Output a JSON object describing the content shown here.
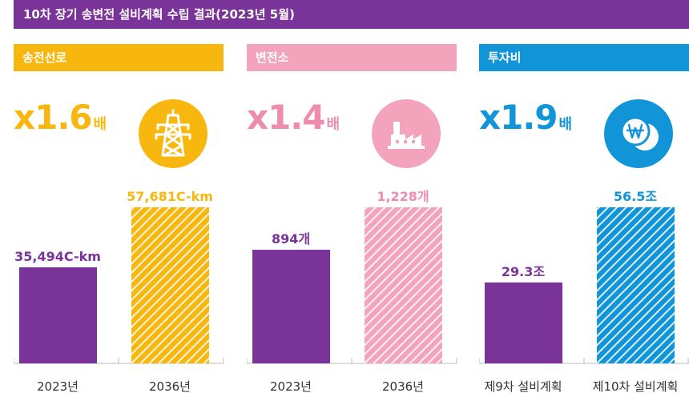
{
  "title": "10차 장기 송변전 설비계획 수립 결과(2023년 5월)",
  "colors": {
    "purple": "#7a3399",
    "yellow": "#f7b70e",
    "pink": "#f4a3bd",
    "blue": "#1295d8",
    "pink_text": "#ee8cac"
  },
  "panels": [
    {
      "header": "송전선로",
      "multiplier": "x1.6",
      "multiplier_unit": "배",
      "icon": "transmission-tower-icon"
    },
    {
      "header": "변전소",
      "multiplier": "x1.4",
      "multiplier_unit": "배",
      "icon": "substation-factory-icon"
    },
    {
      "header": "투자비",
      "multiplier": "x1.9",
      "multiplier_unit": "배",
      "icon": "won-coin-icon"
    }
  ],
  "chart_data": [
    {
      "type": "bar",
      "categories": [
        "2023년",
        "2036년"
      ],
      "values": [
        35494,
        57681
      ],
      "value_labels": [
        "35,494C-km",
        "57,681C-km"
      ],
      "ylim": [
        0,
        57681
      ]
    },
    {
      "type": "bar",
      "categories": [
        "2023년",
        "2036년"
      ],
      "values": [
        894,
        1228
      ],
      "value_labels": [
        "894개",
        "1,228개"
      ],
      "ylim": [
        0,
        1228
      ]
    },
    {
      "type": "bar",
      "categories": [
        "제9차 설비계획",
        "제10차 설비계획"
      ],
      "values": [
        29.3,
        56.5
      ],
      "value_labels": [
        "29.3조",
        "56.5조"
      ],
      "ylim": [
        0,
        56.5
      ]
    }
  ]
}
